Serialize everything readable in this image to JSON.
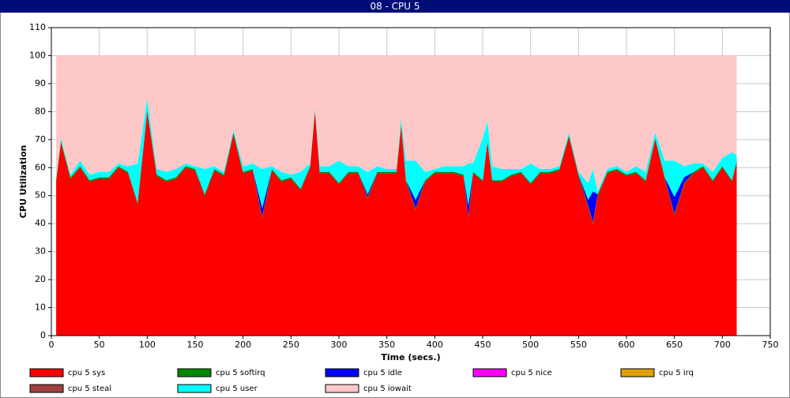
{
  "chart_data": {
    "type": "stacked_area",
    "title": "08 - CPU 5",
    "x_label": "Time (secs.)",
    "y_label": "CPU Utilization",
    "x": [
      5,
      10,
      20,
      30,
      40,
      50,
      60,
      70,
      80,
      90,
      100,
      110,
      120,
      130,
      140,
      150,
      160,
      170,
      180,
      190,
      200,
      210,
      220,
      230,
      240,
      250,
      260,
      270,
      275,
      280,
      290,
      300,
      310,
      320,
      330,
      340,
      350,
      360,
      365,
      370,
      380,
      390,
      400,
      410,
      420,
      430,
      435,
      440,
      450,
      455,
      460,
      470,
      480,
      490,
      500,
      510,
      520,
      530,
      540,
      550,
      560,
      565,
      570,
      580,
      590,
      600,
      610,
      620,
      630,
      640,
      650,
      660,
      670,
      680,
      690,
      700,
      710,
      715
    ],
    "series": [
      {
        "name": "cpu 5 sys",
        "color": "#ff0000",
        "values": [
          55,
          69,
          56,
          60,
          55,
          56,
          56,
          60,
          58,
          47,
          80,
          57,
          55,
          56,
          60,
          59,
          50,
          59,
          57,
          72,
          58,
          59,
          42,
          59,
          55,
          56,
          52,
          60,
          80,
          58,
          58,
          54,
          58,
          58,
          49,
          58,
          58,
          58,
          75,
          55,
          45,
          55,
          58,
          58,
          58,
          57,
          42,
          58,
          55,
          69,
          55,
          55,
          57,
          58,
          54,
          58,
          58,
          59,
          71,
          57,
          46,
          40,
          50,
          58,
          59,
          57,
          58,
          55,
          70,
          56,
          43,
          54,
          58,
          60,
          55,
          60,
          55,
          62
        ]
      },
      {
        "name": "cpu 5 softirq",
        "color": "#008800",
        "values": [
          0.5,
          0.5,
          0.5,
          0.5,
          0.5,
          0.5,
          0.5,
          0.5,
          0.5,
          0.5,
          0.5,
          0.5,
          0.5,
          0.5,
          0.5,
          0.5,
          0.5,
          0.5,
          0.5,
          0.5,
          0.5,
          0.5,
          0.5,
          0.5,
          0.5,
          0.5,
          0.5,
          0.5,
          0.5,
          0.5,
          0.5,
          0.5,
          0.5,
          0.5,
          0.5,
          0.5,
          0.5,
          0.5,
          0.5,
          0.5,
          0.5,
          0.5,
          0.5,
          0.5,
          0.5,
          0.5,
          0.5,
          0.5,
          0.5,
          0.5,
          0.5,
          0.5,
          0.5,
          0.5,
          0.5,
          0.5,
          0.5,
          0.5,
          0.5,
          0.5,
          0.5,
          0.5,
          0.5,
          0.5,
          0.5,
          0.5,
          0.5,
          0.5,
          0.5,
          0.5,
          0.5,
          0.5,
          0.5,
          0.5,
          0.5,
          0.5,
          0.5,
          0.5
        ]
      },
      {
        "name": "cpu 5 idle",
        "color": "#0000ff",
        "values": [
          0,
          0,
          0,
          0,
          0,
          0,
          0,
          0,
          0,
          0,
          0,
          0,
          0,
          0,
          0,
          0,
          0,
          0,
          0,
          0,
          0,
          0,
          3,
          0,
          0,
          0,
          0,
          0,
          0,
          0,
          0,
          0,
          0,
          0,
          1,
          0,
          0,
          0,
          0,
          0,
          3,
          0,
          0,
          0,
          0,
          0,
          4,
          0,
          0,
          0,
          0,
          0,
          0,
          0,
          0,
          0,
          0,
          0,
          0,
          0,
          2,
          11,
          0,
          0,
          0,
          0,
          0,
          0,
          0,
          0,
          6,
          2,
          0,
          0,
          0,
          0,
          0,
          0
        ]
      },
      {
        "name": "cpu 5 nice",
        "color": "#ff00ff",
        "values": [
          0,
          0,
          0,
          0,
          0,
          0,
          0,
          0,
          0,
          0,
          0,
          0,
          0,
          0,
          0,
          0,
          0,
          0,
          0,
          0,
          0,
          0,
          0,
          0,
          0,
          0,
          0,
          0,
          0,
          0,
          0,
          0,
          0,
          0,
          0,
          0,
          0,
          0,
          0,
          0,
          0,
          0,
          0,
          0,
          0,
          0,
          0,
          0,
          0,
          0,
          0,
          0,
          0,
          0,
          0,
          0,
          0,
          0,
          0,
          0,
          0,
          0,
          0,
          0,
          0,
          0,
          0,
          0,
          0,
          0,
          0,
          0,
          0,
          0,
          0,
          0,
          0,
          0
        ]
      },
      {
        "name": "cpu 5 irq",
        "color": "#e0a000",
        "values": [
          0,
          0,
          0,
          0,
          0,
          0,
          0,
          0,
          0,
          0,
          0,
          0,
          0,
          0,
          0,
          0,
          0,
          0,
          0,
          0,
          0,
          0,
          0,
          0,
          0,
          0,
          0,
          0,
          0,
          0,
          0,
          0,
          0,
          0,
          0,
          0,
          0,
          0,
          0,
          0,
          0,
          0,
          0,
          0,
          0,
          0,
          0,
          0,
          0,
          0,
          0,
          0,
          0,
          0,
          0,
          0,
          0,
          0,
          0,
          0,
          0,
          0,
          0,
          0,
          0,
          0,
          0,
          0,
          0,
          0,
          0,
          0,
          0,
          0,
          0,
          0,
          0,
          0
        ]
      },
      {
        "name": "cpu 5 steal",
        "color": "#a04040",
        "values": [
          0,
          0,
          0,
          0,
          0,
          0,
          0,
          0,
          0,
          0,
          0,
          0,
          0,
          0,
          0,
          0,
          0,
          0,
          0,
          0,
          0,
          0,
          0,
          0,
          0,
          0,
          0,
          0,
          0,
          0,
          0,
          0,
          0,
          0,
          0,
          0,
          0,
          0,
          0,
          0,
          0,
          0,
          0,
          0,
          0,
          0,
          0,
          0,
          0,
          0,
          0,
          0,
          0,
          0,
          0,
          0,
          0,
          0,
          0,
          0,
          0,
          0,
          0,
          0,
          0,
          0,
          0,
          0,
          0,
          0,
          0,
          0,
          0,
          0,
          0,
          0,
          0,
          0
        ]
      },
      {
        "name": "cpu 5 user",
        "color": "#00ffff",
        "values": [
          1,
          1,
          1,
          2,
          2,
          2,
          2,
          1,
          2,
          14,
          4,
          2,
          3,
          3,
          1,
          1,
          9,
          1,
          1,
          1,
          2,
          2,
          14,
          1,
          3,
          1,
          6,
          1,
          1,
          2,
          2,
          8,
          2,
          2,
          8,
          2,
          1,
          1,
          2,
          7,
          14,
          3,
          1,
          2,
          2,
          3,
          15,
          3,
          15,
          7,
          5,
          4,
          2,
          1,
          7,
          1,
          1,
          1,
          1,
          1,
          6,
          8,
          1,
          1,
          1,
          1,
          2,
          3,
          2,
          6,
          13,
          4,
          3,
          1,
          3,
          3,
          10,
          2
        ]
      },
      {
        "name": "cpu 5 iowait",
        "color": "#ffc8c8",
        "values": [
          43.5,
          29.5,
          42.5,
          37.5,
          42.5,
          41.5,
          41.5,
          38.5,
          39.5,
          38.5,
          15.5,
          40.5,
          41.5,
          40.5,
          38.5,
          39.5,
          40.5,
          39.5,
          41.5,
          26.5,
          39.5,
          38.5,
          40.5,
          39.5,
          41.5,
          42.5,
          41.5,
          38.5,
          18.5,
          39.5,
          39.5,
          37.5,
          39.5,
          39.5,
          41.5,
          39.5,
          40.5,
          40.5,
          22.5,
          37.5,
          37.5,
          41.5,
          40.5,
          39.5,
          39.5,
          39.5,
          38.5,
          38.5,
          29.5,
          23.5,
          39.5,
          40.5,
          40.5,
          40.5,
          38.5,
          40.5,
          40.5,
          39.5,
          27.5,
          41.5,
          45.5,
          40.5,
          48.5,
          40.5,
          39.5,
          41.5,
          39.5,
          41.5,
          27.5,
          37.5,
          37.5,
          39.5,
          38.5,
          38.5,
          41.5,
          36.5,
          34.5,
          35.5
        ]
      }
    ],
    "xlim": [
      0,
      750
    ],
    "xticks": [
      0,
      50,
      100,
      150,
      200,
      250,
      300,
      350,
      400,
      450,
      500,
      550,
      600,
      650,
      700,
      750
    ],
    "ylim": [
      0,
      110
    ],
    "yticks": [
      0,
      10,
      20,
      30,
      40,
      50,
      60,
      70,
      80,
      90,
      100,
      110
    ],
    "grid": true
  }
}
